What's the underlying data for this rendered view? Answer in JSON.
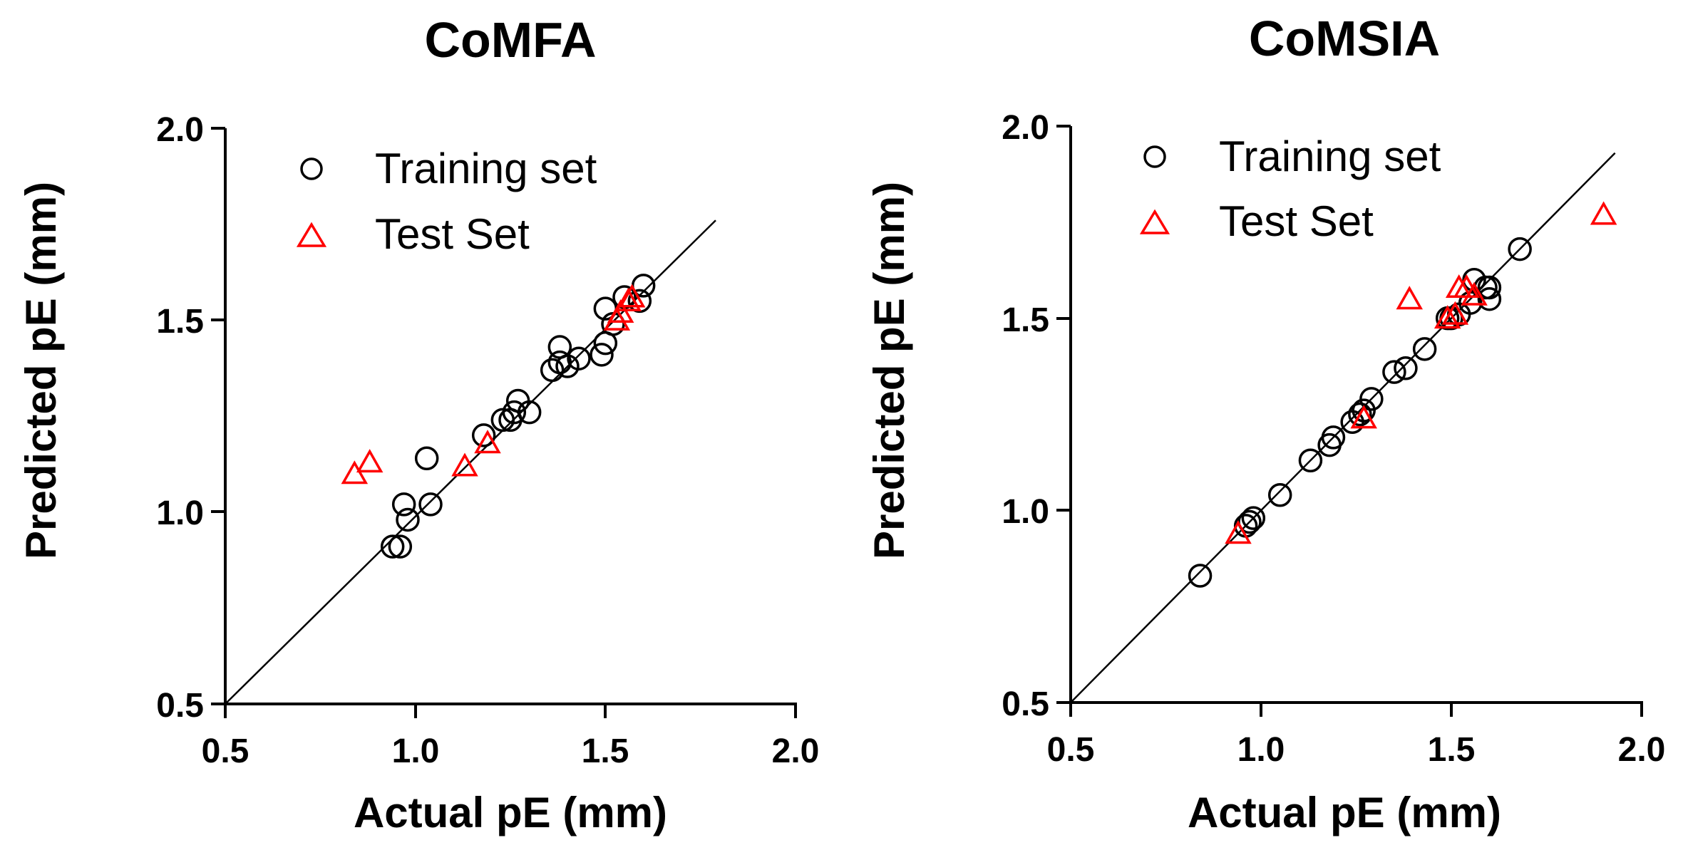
{
  "chart_data": [
    {
      "type": "scatter",
      "title": "CoMFA",
      "xlabel": "Actual pE (mm)",
      "ylabel": "Predicted pE (mm)",
      "xlim": [
        0.5,
        2.0
      ],
      "ylim": [
        0.5,
        2.0
      ],
      "xticks": [
        "0.5",
        "1.0",
        "1.5",
        "2.0"
      ],
      "yticks": [
        "0.5",
        "1.0",
        "1.5",
        "2.0"
      ],
      "legend_position": "top-left",
      "reference_line": {
        "x": [
          0.5,
          1.79
        ],
        "y": [
          0.5,
          1.76
        ]
      },
      "series": [
        {
          "name": "Training set",
          "marker": "circle",
          "color": "#000000",
          "x": [
            0.94,
            0.96,
            0.97,
            0.98,
            1.03,
            1.04,
            1.18,
            1.23,
            1.25,
            1.26,
            1.27,
            1.3,
            1.36,
            1.38,
            1.38,
            1.4,
            1.43,
            1.49,
            1.5,
            1.5,
            1.52,
            1.55,
            1.59,
            1.6
          ],
          "y": [
            0.91,
            0.91,
            1.02,
            0.98,
            1.14,
            1.02,
            1.2,
            1.24,
            1.24,
            1.26,
            1.29,
            1.26,
            1.37,
            1.43,
            1.39,
            1.38,
            1.4,
            1.41,
            1.44,
            1.53,
            1.49,
            1.56,
            1.55,
            1.59
          ]
        },
        {
          "name": "Test Set",
          "marker": "triangle",
          "color": "#ff0000",
          "x": [
            0.84,
            0.88,
            1.13,
            1.19,
            1.53,
            1.54,
            1.56,
            1.57
          ],
          "y": [
            1.1,
            1.13,
            1.12,
            1.18,
            1.5,
            1.52,
            1.55,
            1.56
          ]
        }
      ]
    },
    {
      "type": "scatter",
      "title": "CoMSIA",
      "xlabel": "Actual pE (mm)",
      "ylabel": "Predicted pE (mm)",
      "xlim": [
        0.5,
        2.0
      ],
      "ylim": [
        0.5,
        2.0
      ],
      "xticks": [
        "0.5",
        "1.0",
        "1.5",
        "2.0"
      ],
      "yticks": [
        "0.5",
        "1.0",
        "1.5",
        "2.0"
      ],
      "legend_position": "top-left",
      "reference_line": {
        "x": [
          0.5,
          1.93
        ],
        "y": [
          0.5,
          1.93
        ]
      },
      "series": [
        {
          "name": "Training set",
          "marker": "circle",
          "color": "#000000",
          "x": [
            0.84,
            0.96,
            0.97,
            0.98,
            1.05,
            1.13,
            1.18,
            1.19,
            1.24,
            1.26,
            1.27,
            1.29,
            1.35,
            1.38,
            1.43,
            1.49,
            1.5,
            1.52,
            1.55,
            1.56,
            1.59,
            1.6,
            1.6,
            1.68
          ],
          "y": [
            0.83,
            0.96,
            0.97,
            0.98,
            1.04,
            1.13,
            1.17,
            1.19,
            1.23,
            1.25,
            1.26,
            1.29,
            1.36,
            1.37,
            1.42,
            1.5,
            1.5,
            1.51,
            1.54,
            1.6,
            1.58,
            1.55,
            1.58,
            1.68
          ]
        },
        {
          "name": "Test Set",
          "marker": "triangle",
          "color": "#ff0000",
          "x": [
            0.94,
            1.27,
            1.39,
            1.49,
            1.51,
            1.52,
            1.54,
            1.56,
            1.9
          ],
          "y": [
            0.94,
            1.24,
            1.55,
            1.5,
            1.51,
            1.58,
            1.58,
            1.56,
            1.77
          ]
        }
      ]
    }
  ]
}
